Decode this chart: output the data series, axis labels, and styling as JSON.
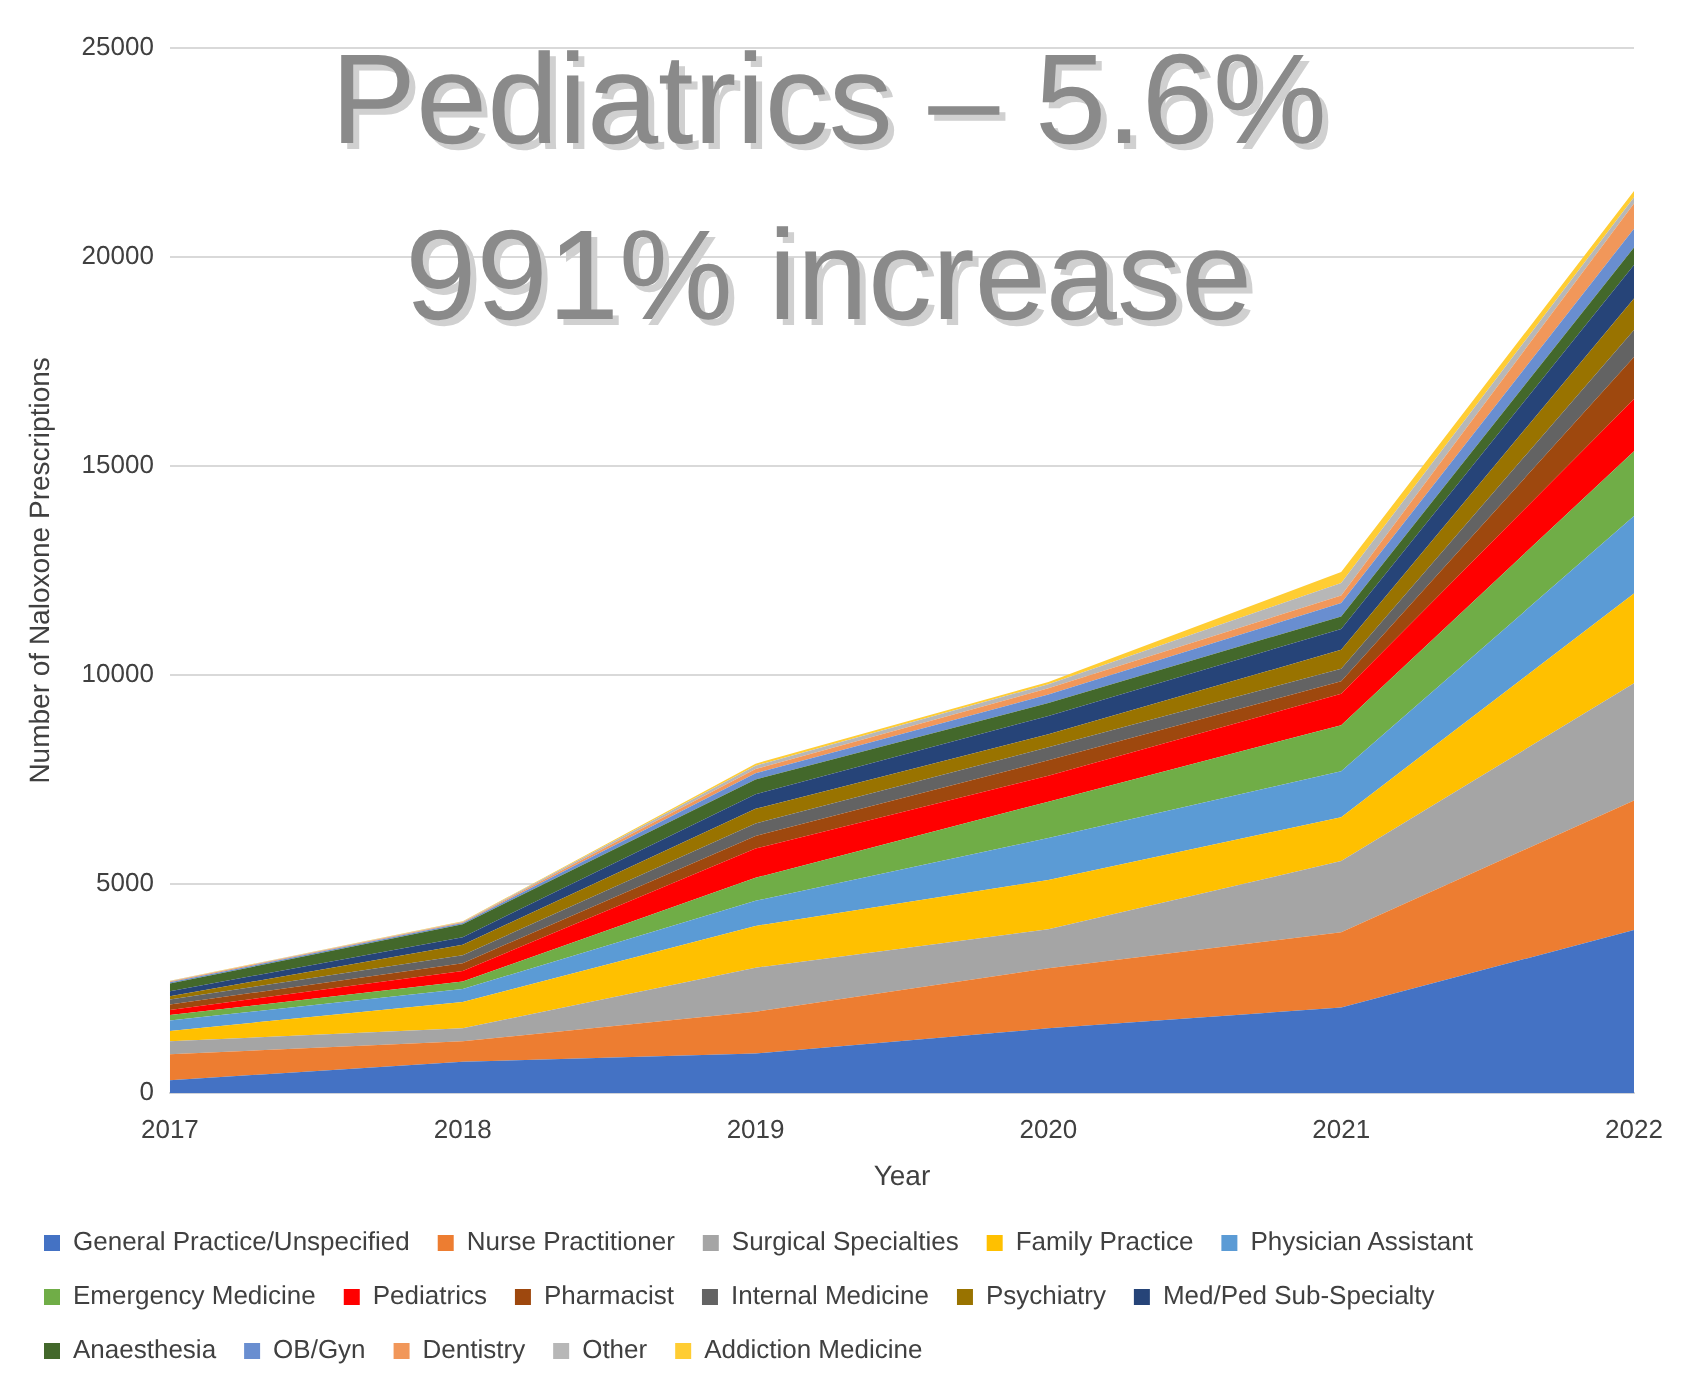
{
  "chart_data": {
    "type": "area",
    "stacked": true,
    "xlabel": "Year",
    "ylabel": "Number of Naloxone Prescriptions",
    "annotations": [
      "Pediatrics – 5.6%",
      "991% increase"
    ],
    "categories": [
      "2017",
      "2018",
      "2019",
      "2020",
      "2021",
      "2022"
    ],
    "ylim": [
      0,
      25000
    ],
    "yticks": [
      0,
      5000,
      10000,
      15000,
      20000,
      25000
    ],
    "grid": "y",
    "legend": "bottom",
    "series": [
      {
        "name": "General Practice/Unspecified",
        "color": "#4472c4",
        "values": [
          310,
          750,
          950,
          1550,
          2050,
          3900
        ]
      },
      {
        "name": "Nurse Practitioner",
        "color": "#ed7d31",
        "values": [
          620,
          490,
          1000,
          1440,
          1800,
          3100
        ]
      },
      {
        "name": "Surgical Specialties",
        "color": "#a5a5a5",
        "values": [
          310,
          310,
          1050,
          930,
          1700,
          2800
        ]
      },
      {
        "name": "Family Practice",
        "color": "#ffc000",
        "values": [
          250,
          630,
          1000,
          1180,
          1050,
          2150
        ]
      },
      {
        "name": "Physician Assistant",
        "color": "#5b9bd5",
        "values": [
          250,
          310,
          600,
          1000,
          1100,
          1850
        ]
      },
      {
        "name": "Emergency Medicine",
        "color": "#70ad47",
        "values": [
          130,
          180,
          550,
          870,
          1100,
          1550
        ]
      },
      {
        "name": "Pediatrics",
        "color": "#ff0000",
        "values": [
          120,
          250,
          700,
          620,
          750,
          1250
        ]
      },
      {
        "name": "Pharmacist",
        "color": "#9e480e",
        "values": [
          130,
          190,
          300,
          370,
          300,
          1000
        ]
      },
      {
        "name": "Internal Medicine",
        "color": "#636363",
        "values": [
          120,
          190,
          300,
          310,
          300,
          650
        ]
      },
      {
        "name": "Psychiatry",
        "color": "#997300",
        "values": [
          80,
          250,
          350,
          310,
          450,
          750
        ]
      },
      {
        "name": "Med/Ped Sub-Specialty",
        "color": "#264478",
        "values": [
          120,
          180,
          350,
          440,
          500,
          800
        ]
      },
      {
        "name": "Anaesthesia",
        "color": "#43682b",
        "values": [
          180,
          310,
          350,
          310,
          300,
          420
        ]
      },
      {
        "name": "OB/Gyn",
        "color": "#698ed0",
        "values": [
          30,
          30,
          150,
          200,
          320,
          450
        ]
      },
      {
        "name": "Dentistry",
        "color": "#f1975a",
        "values": [
          20,
          20,
          100,
          150,
          180,
          600
        ]
      },
      {
        "name": "Other",
        "color": "#b7b7b7",
        "values": [
          10,
          10,
          80,
          100,
          300,
          150
        ]
      },
      {
        "name": "Addiction Medicine",
        "color": "#ffcd33",
        "values": [
          10,
          10,
          50,
          50,
          260,
          150
        ]
      }
    ]
  }
}
